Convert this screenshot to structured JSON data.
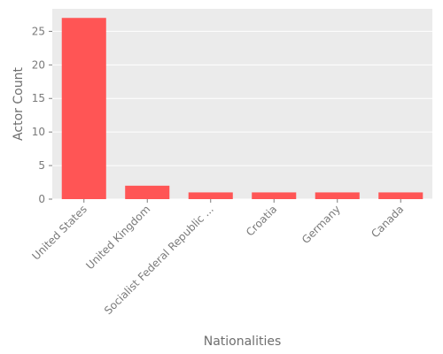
{
  "chart_data": {
    "type": "bar",
    "title": "",
    "xlabel": "Nationalities",
    "ylabel": "Actor Count",
    "categories": [
      "United States",
      "United Kingdom",
      "Socialist Federal Republic ...",
      "Croatia",
      "Germany",
      "Canada"
    ],
    "values": [
      27,
      2,
      1,
      1,
      1,
      1
    ],
    "yticks": [
      0,
      5,
      10,
      15,
      20,
      25
    ],
    "ylim": [
      0,
      28.35
    ],
    "grid": true,
    "bar_color": "#ff5555",
    "plot_background": "#ebebeb",
    "grid_color": "#ffffff"
  }
}
